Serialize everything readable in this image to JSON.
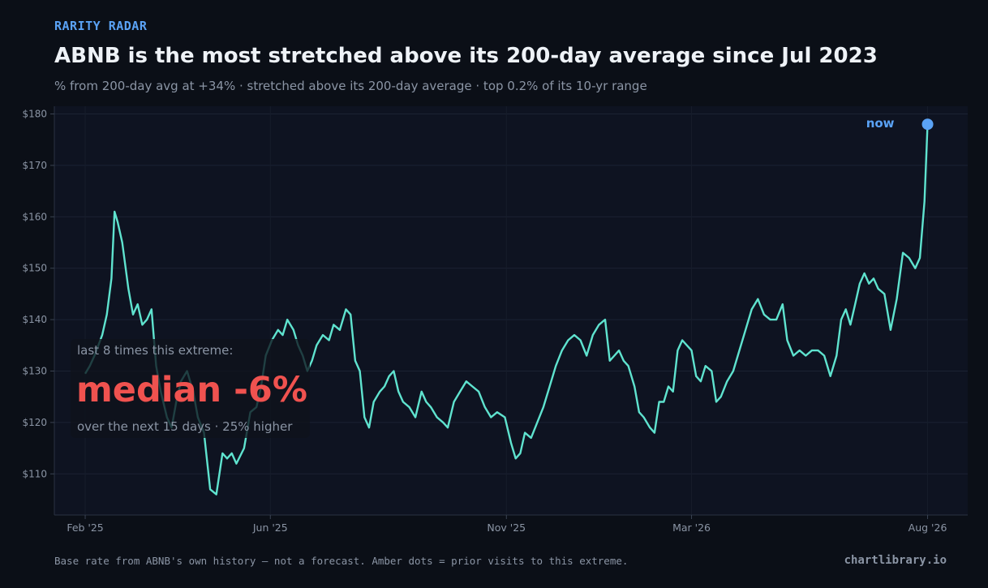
{
  "header": {
    "kicker": "RARITY RADAR",
    "title": "ABNB is the most stretched above its 200-day average since Jul 2023",
    "subtitle": "% from 200-day avg at +34%  ·  stretched above its 200-day average  ·  top 0.2% of its 10-yr range"
  },
  "callout": {
    "heading": "last 8 times this extreme:",
    "stat": "median -6%",
    "detail": "over the next 15 days  ·  25% higher"
  },
  "footer": {
    "note": "Base rate from ABNB's own history — not a forecast. Amber dots = prior visits to this extreme.",
    "brand": "chartlibrary.io"
  },
  "colors": {
    "background": "#0b0f17",
    "plot_background": "#0e1321",
    "line": "#5fe3cf",
    "now_marker": "#5aa2f5",
    "callout_stat": "#f0524f",
    "muted_text": "#8b95a5"
  },
  "chart_data": {
    "type": "line",
    "x_axis": "date",
    "y_axis_format": "$",
    "ylim": [
      102,
      181.5
    ],
    "y_ticks": [
      110,
      120,
      130,
      140,
      150,
      160,
      170,
      180
    ],
    "y_tick_labels": [
      "$110",
      "$120",
      "$130",
      "$140",
      "$150",
      "$160",
      "$170",
      "$180"
    ],
    "x_ticks": [
      "2025-02-01",
      "2025-06-01",
      "2025-11-01",
      "2026-03-01",
      "2026-08-01"
    ],
    "x_tick_labels": [
      "Feb '25",
      "Jun '25",
      "Nov '25",
      "Mar '26",
      "Aug '26"
    ],
    "xlim": [
      "2025-01-12",
      "2026-08-27"
    ],
    "grid": true,
    "series": [
      {
        "values": [
          [
            "2025-02-01",
            129.5
          ],
          [
            "2025-02-04",
            131
          ],
          [
            "2025-02-07",
            133
          ],
          [
            "2025-02-12",
            137
          ],
          [
            "2025-02-15",
            141
          ],
          [
            "2025-02-18",
            148
          ],
          [
            "2025-02-20",
            161
          ],
          [
            "2025-02-22",
            159
          ],
          [
            "2025-02-25",
            155
          ],
          [
            "2025-03-01",
            146
          ],
          [
            "2025-03-04",
            141
          ],
          [
            "2025-03-07",
            143
          ],
          [
            "2025-03-10",
            139
          ],
          [
            "2025-03-13",
            140
          ],
          [
            "2025-03-16",
            142
          ],
          [
            "2025-03-19",
            131
          ],
          [
            "2025-03-22",
            126
          ],
          [
            "2025-03-26",
            121
          ],
          [
            "2025-03-29",
            119
          ],
          [
            "2025-04-01",
            124
          ],
          [
            "2025-04-04",
            128
          ],
          [
            "2025-04-08",
            130
          ],
          [
            "2025-04-12",
            126
          ],
          [
            "2025-04-15",
            121
          ],
          [
            "2025-04-19",
            118
          ],
          [
            "2025-04-23",
            107
          ],
          [
            "2025-04-27",
            106
          ],
          [
            "2025-05-01",
            114
          ],
          [
            "2025-05-04",
            113
          ],
          [
            "2025-05-07",
            114
          ],
          [
            "2025-05-10",
            112
          ],
          [
            "2025-05-15",
            115
          ],
          [
            "2025-05-19",
            122
          ],
          [
            "2025-05-23",
            123
          ],
          [
            "2025-05-26",
            127
          ],
          [
            "2025-05-29",
            133
          ],
          [
            "2025-06-02",
            136
          ],
          [
            "2025-06-06",
            138
          ],
          [
            "2025-06-09",
            137
          ],
          [
            "2025-06-12",
            140
          ],
          [
            "2025-06-16",
            138
          ],
          [
            "2025-06-19",
            135
          ],
          [
            "2025-06-22",
            133
          ],
          [
            "2025-06-25",
            130
          ],
          [
            "2025-06-28",
            132
          ],
          [
            "2025-07-01",
            135
          ],
          [
            "2025-07-05",
            137
          ],
          [
            "2025-07-09",
            136
          ],
          [
            "2025-07-12",
            139
          ],
          [
            "2025-07-16",
            138
          ],
          [
            "2025-07-20",
            142
          ],
          [
            "2025-07-23",
            141
          ],
          [
            "2025-07-26",
            132
          ],
          [
            "2025-07-29",
            130
          ],
          [
            "2025-08-01",
            121
          ],
          [
            "2025-08-04",
            119
          ],
          [
            "2025-08-07",
            124
          ],
          [
            "2025-08-11",
            126
          ],
          [
            "2025-08-14",
            127
          ],
          [
            "2025-08-17",
            129
          ],
          [
            "2025-08-20",
            130
          ],
          [
            "2025-08-23",
            126
          ],
          [
            "2025-08-26",
            124
          ],
          [
            "2025-08-30",
            123
          ],
          [
            "2025-09-03",
            121
          ],
          [
            "2025-09-07",
            126
          ],
          [
            "2025-09-10",
            124
          ],
          [
            "2025-09-13",
            123
          ],
          [
            "2025-09-17",
            121
          ],
          [
            "2025-09-21",
            120
          ],
          [
            "2025-09-24",
            119
          ],
          [
            "2025-09-28",
            124
          ],
          [
            "2025-10-02",
            126
          ],
          [
            "2025-10-06",
            128
          ],
          [
            "2025-10-10",
            127
          ],
          [
            "2025-10-14",
            126
          ],
          [
            "2025-10-18",
            123
          ],
          [
            "2025-10-22",
            121
          ],
          [
            "2025-10-26",
            122
          ],
          [
            "2025-10-31",
            121
          ],
          [
            "2025-11-04",
            116
          ],
          [
            "2025-11-07",
            113
          ],
          [
            "2025-11-10",
            114
          ],
          [
            "2025-11-13",
            118
          ],
          [
            "2025-11-17",
            117
          ],
          [
            "2025-11-21",
            120
          ],
          [
            "2025-11-25",
            123
          ],
          [
            "2025-11-29",
            127
          ],
          [
            "2025-12-03",
            131
          ],
          [
            "2025-12-07",
            134
          ],
          [
            "2025-12-11",
            136
          ],
          [
            "2025-12-15",
            137
          ],
          [
            "2025-12-19",
            136
          ],
          [
            "2025-12-23",
            133
          ],
          [
            "2025-12-27",
            137
          ],
          [
            "2025-12-31",
            139
          ],
          [
            "2026-01-04",
            140
          ],
          [
            "2026-01-07",
            132
          ],
          [
            "2026-01-10",
            133
          ],
          [
            "2026-01-13",
            134
          ],
          [
            "2026-01-16",
            132
          ],
          [
            "2026-01-19",
            131
          ],
          [
            "2026-01-23",
            127
          ],
          [
            "2026-01-26",
            122
          ],
          [
            "2026-01-29",
            121
          ],
          [
            "2026-02-02",
            119
          ],
          [
            "2026-02-05",
            118
          ],
          [
            "2026-02-08",
            124
          ],
          [
            "2026-02-11",
            124
          ],
          [
            "2026-02-14",
            127
          ],
          [
            "2026-02-17",
            126
          ],
          [
            "2026-02-20",
            134
          ],
          [
            "2026-02-23",
            136
          ],
          [
            "2026-02-26",
            135
          ],
          [
            "2026-03-01",
            134
          ],
          [
            "2026-03-04",
            129
          ],
          [
            "2026-03-07",
            128
          ],
          [
            "2026-03-10",
            131
          ],
          [
            "2026-03-14",
            130
          ],
          [
            "2026-03-17",
            124
          ],
          [
            "2026-03-20",
            125
          ],
          [
            "2026-03-24",
            128
          ],
          [
            "2026-03-28",
            130
          ],
          [
            "2026-04-01",
            134
          ],
          [
            "2026-04-05",
            138
          ],
          [
            "2026-04-09",
            142
          ],
          [
            "2026-04-13",
            144
          ],
          [
            "2026-04-17",
            141
          ],
          [
            "2026-04-21",
            140
          ],
          [
            "2026-04-25",
            140
          ],
          [
            "2026-04-29",
            143
          ],
          [
            "2026-05-02",
            136
          ],
          [
            "2026-05-06",
            133
          ],
          [
            "2026-05-10",
            134
          ],
          [
            "2026-05-14",
            133
          ],
          [
            "2026-05-18",
            134
          ],
          [
            "2026-05-22",
            134
          ],
          [
            "2026-05-26",
            133
          ],
          [
            "2026-05-30",
            129
          ],
          [
            "2026-06-03",
            133
          ],
          [
            "2026-06-06",
            140
          ],
          [
            "2026-06-09",
            142
          ],
          [
            "2026-06-12",
            139
          ],
          [
            "2026-06-15",
            143
          ],
          [
            "2026-06-18",
            147
          ],
          [
            "2026-06-21",
            149
          ],
          [
            "2026-06-24",
            147
          ],
          [
            "2026-06-27",
            148
          ],
          [
            "2026-06-30",
            146
          ],
          [
            "2026-07-04",
            145
          ],
          [
            "2026-07-08",
            138
          ],
          [
            "2026-07-12",
            144
          ],
          [
            "2026-07-16",
            153
          ],
          [
            "2026-07-20",
            152
          ],
          [
            "2026-07-24",
            150
          ],
          [
            "2026-07-27",
            152
          ],
          [
            "2026-07-30",
            163
          ],
          [
            "2026-08-01",
            178
          ]
        ]
      }
    ],
    "annotations": [
      {
        "text": "now",
        "date": "2026-08-01",
        "value": 178
      }
    ]
  }
}
